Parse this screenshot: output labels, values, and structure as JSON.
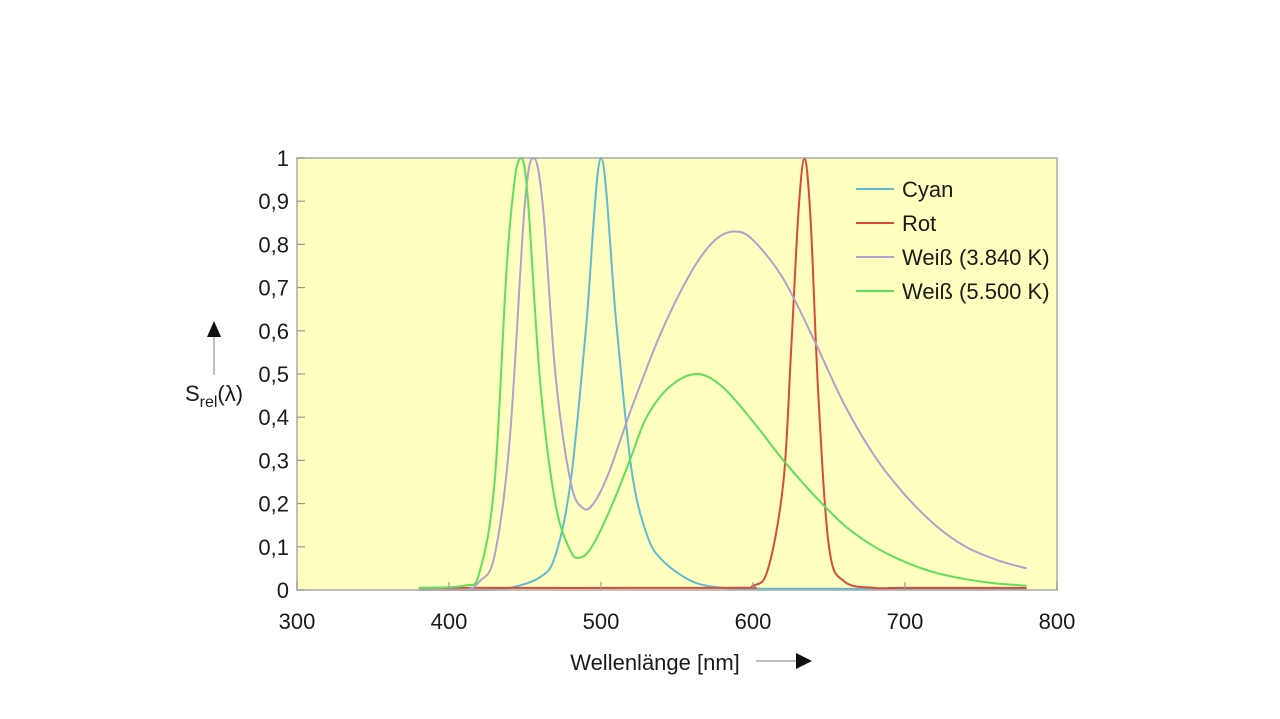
{
  "chart_data": {
    "type": "line",
    "title": "",
    "xlabel": "Wellenlänge [nm]",
    "ylabel": {
      "base": "S",
      "sub": "rel",
      "suffix": "(λ)"
    },
    "xlim": [
      300,
      800
    ],
    "ylim": [
      0,
      1
    ],
    "xticks": [
      300,
      400,
      500,
      600,
      700,
      800
    ],
    "yticks": [
      0,
      0.1,
      0.2,
      0.3,
      0.4,
      0.5,
      0.6,
      0.7,
      0.8,
      0.9,
      1
    ],
    "ytick_labels": [
      "0",
      "0,1",
      "0,2",
      "0,3",
      "0,4",
      "0,5",
      "0,6",
      "0,7",
      "0,8",
      "0,9",
      "1"
    ],
    "grid": false,
    "legend_position": "top-right",
    "plot_background": "#ffffc0",
    "series": [
      {
        "name": "Cyan",
        "color": "#5fbcd3",
        "x": [
          380,
          420,
          440,
          460,
          470,
          480,
          490,
          500,
          510,
          520,
          530,
          540,
          560,
          580,
          600,
          620,
          650,
          700,
          780
        ],
        "y": [
          0,
          0,
          0.005,
          0.03,
          0.08,
          0.25,
          0.6,
          1.0,
          0.62,
          0.28,
          0.13,
          0.07,
          0.02,
          0.005,
          0.003,
          0.003,
          0.003,
          0.003,
          0.003
        ]
      },
      {
        "name": "Rot",
        "color": "#d94a3a",
        "x": [
          380,
          580,
          600,
          610,
          620,
          625,
          630,
          634,
          638,
          643,
          650,
          660,
          680,
          700,
          780
        ],
        "y": [
          0.005,
          0.005,
          0.01,
          0.05,
          0.25,
          0.55,
          0.88,
          1.0,
          0.85,
          0.45,
          0.1,
          0.02,
          0.005,
          0.005,
          0.005
        ]
      },
      {
        "name": "Weiß (3.840 K)",
        "color": "#b39fd0",
        "x": [
          380,
          410,
          420,
          430,
          440,
          450,
          456,
          462,
          470,
          480,
          488,
          495,
          505,
          520,
          540,
          560,
          575,
          588,
          600,
          620,
          640,
          660,
          680,
          700,
          720,
          740,
          760,
          780
        ],
        "y": [
          0,
          0,
          0.02,
          0.08,
          0.35,
          0.9,
          1.0,
          0.88,
          0.5,
          0.25,
          0.19,
          0.2,
          0.27,
          0.42,
          0.6,
          0.74,
          0.81,
          0.83,
          0.81,
          0.72,
          0.58,
          0.43,
          0.31,
          0.22,
          0.15,
          0.1,
          0.07,
          0.05
        ]
      },
      {
        "name": "Weiß (5.500 K)",
        "color": "#5ee05e",
        "x": [
          380,
          410,
          420,
          430,
          438,
          444,
          448,
          452,
          460,
          470,
          480,
          486,
          492,
          500,
          510,
          520,
          530,
          545,
          563,
          580,
          600,
          620,
          640,
          660,
          680,
          700,
          720,
          740,
          760,
          780
        ],
        "y": [
          0.005,
          0.01,
          0.04,
          0.25,
          0.75,
          0.97,
          1.0,
          0.9,
          0.48,
          0.2,
          0.09,
          0.075,
          0.09,
          0.14,
          0.22,
          0.31,
          0.4,
          0.47,
          0.5,
          0.47,
          0.39,
          0.3,
          0.22,
          0.15,
          0.1,
          0.065,
          0.04,
          0.025,
          0.015,
          0.01
        ]
      }
    ]
  }
}
